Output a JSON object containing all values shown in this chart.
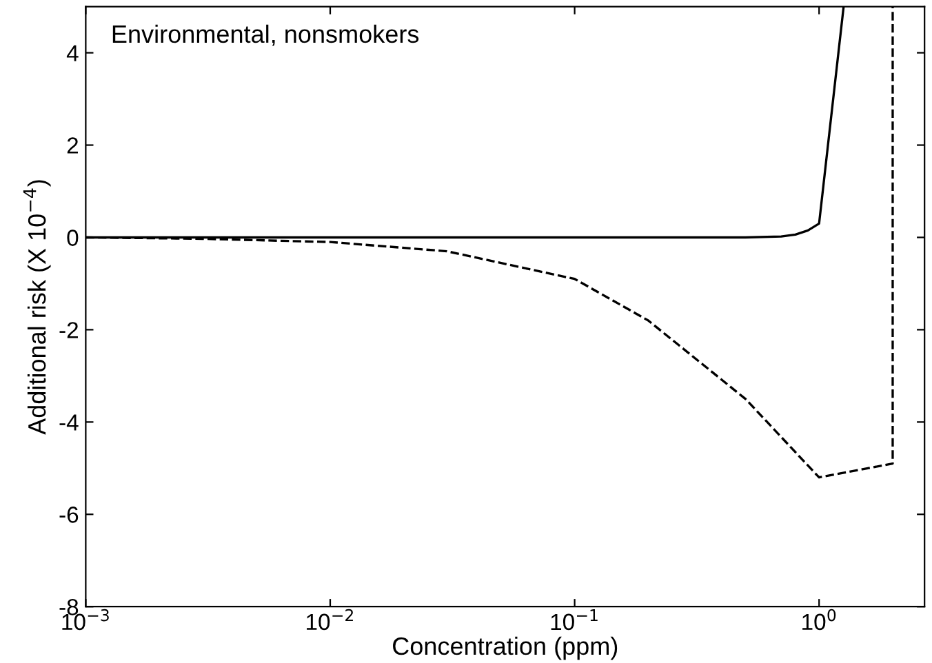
{
  "chart_data": {
    "type": "line",
    "xlabel": "Concentration (ppm)",
    "ylabel": "Additional risk (X 10$^{−4}$)",
    "annotations": [
      "Environmental, nonsmokers"
    ],
    "log": "x",
    "xlim": [
      0.001,
      2.7
    ],
    "ylim": [
      -8,
      5
    ],
    "xticks": [
      {
        "value": 0.001,
        "label": "10$^{−3}$"
      },
      {
        "value": 0.01,
        "label": "10$^{−2}$"
      },
      {
        "value": 0.1,
        "label": "10$^{−1}$"
      },
      {
        "value": 1,
        "label": "10$^{0}$"
      }
    ],
    "yticks": [
      -8,
      -6,
      -4,
      -2,
      0,
      2,
      4
    ],
    "grid": false,
    "legend": false,
    "marker": "none",
    "series": [
      {
        "color": "#000000",
        "line_style": "solid",
        "x": [
          0.001,
          0.01,
          0.1,
          0.5,
          0.7,
          0.8,
          0.9,
          1.0,
          1.26
        ],
        "values": [
          0,
          0,
          0,
          0,
          0.02,
          0.06,
          0.15,
          0.3,
          5
        ]
      },
      {
        "color": "#000000",
        "line_style": "dashed",
        "x": [
          0.001,
          0.003,
          0.01,
          0.03,
          0.1,
          0.2,
          0.5,
          1.0,
          2.0,
          2.0
        ],
        "values": [
          0,
          -0.03,
          -0.1,
          -0.3,
          -0.9,
          -1.8,
          -3.5,
          -5.2,
          -4.9,
          5
        ]
      }
    ]
  }
}
